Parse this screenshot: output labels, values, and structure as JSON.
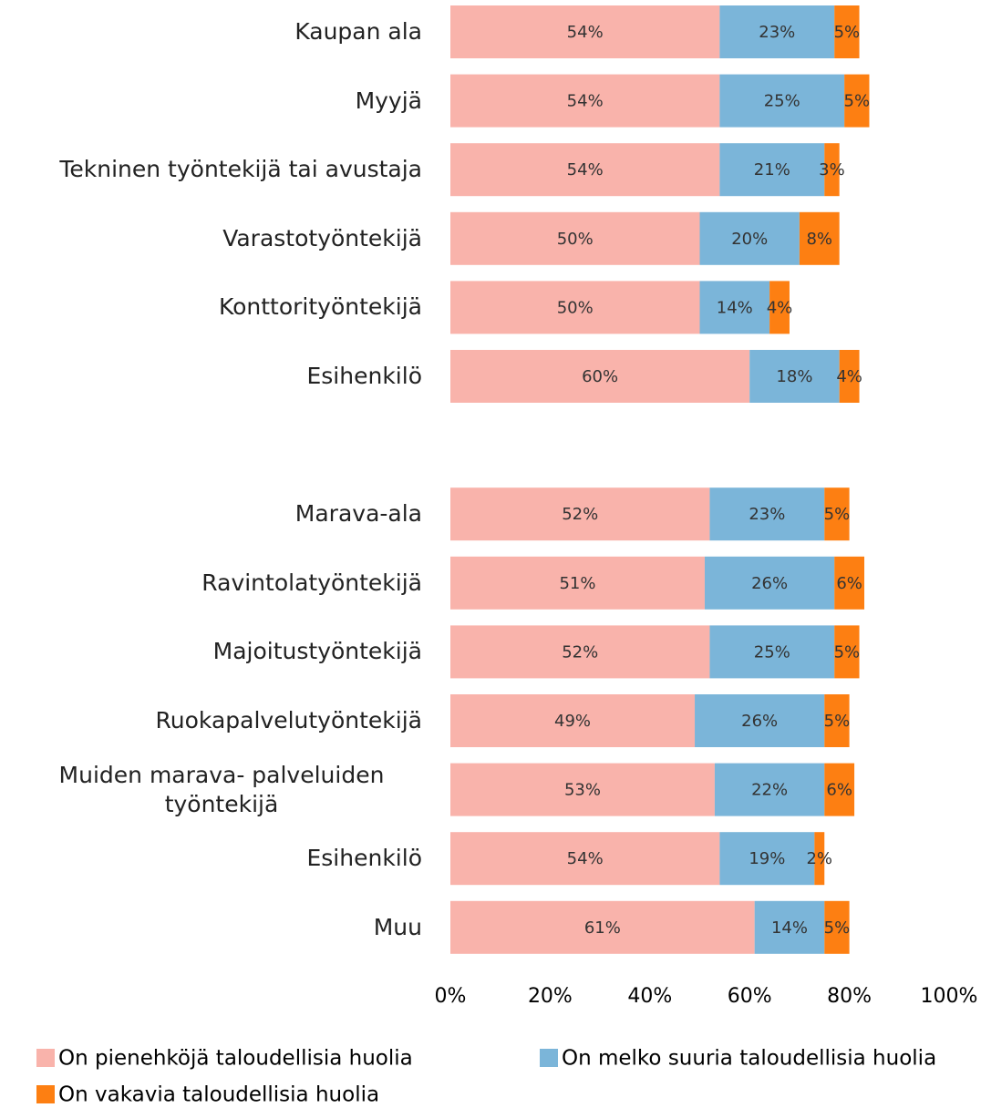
{
  "chart_data": {
    "type": "stacked-bar-horizontal",
    "categories": [
      "Kaupan ala",
      "Myyjä",
      "Tekninen työntekijä tai avustaja",
      "Varastotyöntekijä",
      "Konttorityöntekijä",
      "Esihenkilö",
      null,
      "Marava-ala",
      "Ravintolatyöntekijä",
      "Majoitustyöntekijä",
      "Ruokapalvelutyöntekijä",
      "Muiden marava- palveluiden työntekijä",
      "Esihenkilö",
      "Muu"
    ],
    "series": [
      {
        "name": "On pienehköjä taloudellisia huolia",
        "color": "#f9b3ab",
        "values": [
          54,
          54,
          54,
          50,
          50,
          60,
          null,
          52,
          51,
          52,
          49,
          53,
          54,
          61
        ],
        "value_labels": [
          "54%",
          "54%",
          "54%",
          "50%",
          "50%",
          "60%",
          null,
          "52%",
          "51%",
          "52%",
          "49%",
          "53%",
          "54%",
          "61%"
        ]
      },
      {
        "name": "On melko suuria taloudellisia huolia",
        "color": "#7bb5d9",
        "values": [
          23,
          25,
          21,
          20,
          14,
          18,
          null,
          23,
          26,
          25,
          26,
          22,
          19,
          14
        ],
        "value_labels": [
          "23%",
          "25%",
          "21%",
          "20%",
          "14%",
          "18%",
          null,
          "23%",
          "26%",
          "25%",
          "26%",
          "22%",
          "19%",
          "14%"
        ]
      },
      {
        "name": "On vakavia taloudellisia huolia",
        "color": "#fd7f12",
        "values": [
          5,
          5,
          3,
          8,
          4,
          4,
          null,
          5,
          6,
          5,
          5,
          6,
          2,
          5
        ],
        "value_labels": [
          "5%",
          "5%",
          "3%",
          "8%",
          "4%",
          "4%",
          null,
          "5%",
          "6%",
          "5%",
          "5%",
          "6%",
          "2%",
          "5%"
        ]
      }
    ],
    "xlim": [
      0,
      100
    ],
    "xticks": [
      {
        "value": 0,
        "label": "0%"
      },
      {
        "value": 20,
        "label": "20%"
      },
      {
        "value": 40,
        "label": "40%"
      },
      {
        "value": 60,
        "label": "60%"
      },
      {
        "value": 80,
        "label": "80%"
      },
      {
        "value": 100,
        "label": "100%"
      }
    ],
    "legend": "bottom"
  }
}
